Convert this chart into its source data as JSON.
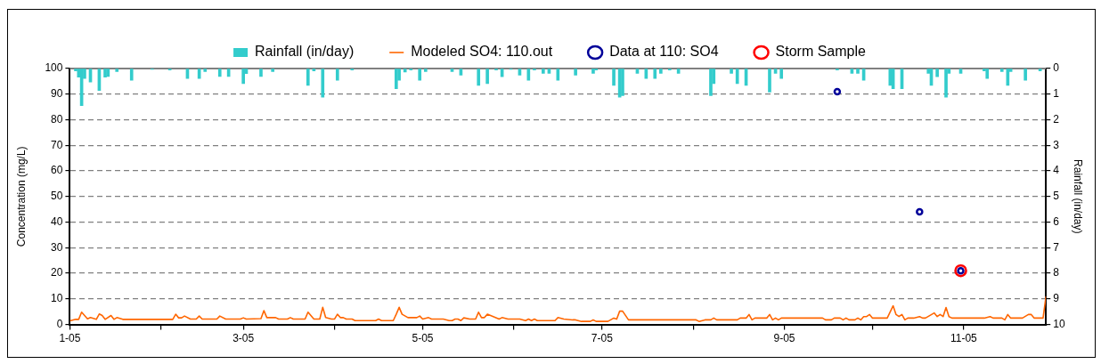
{
  "chart_data": {
    "type": "line",
    "ylabel": "Concentration (mg/L)",
    "y2label": "Rainfall (in/day)",
    "xlim": [
      "2005-01-01",
      "2005-11-29"
    ],
    "xticks": [
      {
        "value": "2005-01-01",
        "label": "1-05"
      },
      {
        "value": "2005-02-01",
        "label": null
      },
      {
        "value": "2005-03-01",
        "label": "3-05"
      },
      {
        "value": "2005-04-01",
        "label": null
      },
      {
        "value": "2005-05-01",
        "label": "5-05"
      },
      {
        "value": "2005-06-01",
        "label": null
      },
      {
        "value": "2005-07-01",
        "label": "7-05"
      },
      {
        "value": "2005-08-01",
        "label": null
      },
      {
        "value": "2005-09-01",
        "label": "9-05"
      },
      {
        "value": "2005-10-01",
        "label": null
      },
      {
        "value": "2005-11-01",
        "label": "11-05"
      }
    ],
    "ylim": [
      0,
      100
    ],
    "yticks": [
      0,
      10,
      20,
      30,
      40,
      50,
      60,
      70,
      80,
      90,
      100
    ],
    "y2lim": [
      10,
      0
    ],
    "y2ticks": [
      0,
      1,
      2,
      3,
      4,
      5,
      6,
      7,
      8,
      9,
      10
    ],
    "grid": "y",
    "legend": "top",
    "marker": "circle",
    "series": [
      {
        "name": "Rainfall (in/day)",
        "type": "bar",
        "axis": "y2",
        "color": "#33cccc",
        "x": [
          "2005-01-03",
          "2005-01-04",
          "2005-01-05",
          "2005-01-06",
          "2005-01-08",
          "2005-01-11",
          "2005-01-13",
          "2005-01-14",
          "2005-01-17",
          "2005-01-22",
          "2005-01-29",
          "2005-02-04",
          "2005-02-10",
          "2005-02-14",
          "2005-02-16",
          "2005-02-21",
          "2005-02-24",
          "2005-03-01",
          "2005-03-02",
          "2005-03-07",
          "2005-03-11",
          "2005-03-23",
          "2005-03-25",
          "2005-03-28",
          "2005-04-02",
          "2005-04-07",
          "2005-04-22",
          "2005-04-23",
          "2005-04-25",
          "2005-04-27",
          "2005-04-30",
          "2005-05-02",
          "2005-05-11",
          "2005-05-14",
          "2005-05-20",
          "2005-05-23",
          "2005-05-26",
          "2005-05-28",
          "2005-05-31",
          "2005-06-03",
          "2005-06-06",
          "2005-06-08",
          "2005-06-11",
          "2005-06-13",
          "2005-06-16",
          "2005-06-22",
          "2005-06-28",
          "2005-06-29",
          "2005-07-05",
          "2005-07-07",
          "2005-07-08",
          "2005-07-13",
          "2005-07-16",
          "2005-07-19",
          "2005-07-21",
          "2005-07-24",
          "2005-07-27",
          "2005-08-07",
          "2005-08-08",
          "2005-08-14",
          "2005-08-16",
          "2005-08-19",
          "2005-08-27",
          "2005-08-29",
          "2005-08-31",
          "2005-09-19",
          "2005-09-24",
          "2005-09-26",
          "2005-09-28",
          "2005-10-07",
          "2005-10-08",
          "2005-10-11",
          "2005-10-20",
          "2005-10-21",
          "2005-10-23",
          "2005-10-26",
          "2005-10-27",
          "2005-10-31",
          "2005-11-08",
          "2005-11-09",
          "2005-11-14",
          "2005-11-16",
          "2005-11-17",
          "2005-11-22",
          "2005-11-27"
        ],
        "values": [
          0.09,
          0.34,
          1.45,
          0.39,
          0.53,
          0.86,
          0.34,
          0.31,
          0.12,
          0.46,
          0.03,
          0.06,
          0.39,
          0.39,
          0.12,
          0.31,
          0.31,
          0.59,
          0.2,
          0.31,
          0.12,
          0.66,
          0.09,
          1.12,
          0.46,
          0.06,
          0.79,
          0.46,
          0.14,
          0.06,
          0.46,
          0.12,
          0.12,
          0.26,
          0.66,
          0.59,
          0.06,
          0.32,
          0.03,
          0.26,
          0.46,
          0.06,
          0.19,
          0.19,
          0.46,
          0.26,
          0.19,
          0.06,
          0.66,
          1.12,
          1.06,
          0.19,
          0.39,
          0.39,
          0.19,
          0.06,
          0.19,
          1.06,
          0.59,
          0.19,
          0.59,
          0.66,
          0.92,
          0.19,
          0.39,
          0.06,
          0.19,
          0.19,
          0.46,
          0.66,
          0.79,
          0.79,
          0.19,
          0.66,
          0.32,
          1.12,
          0.19,
          0.19,
          0.09,
          0.39,
          0.12,
          0.66,
          0.12,
          0.46,
          0.09
        ]
      },
      {
        "name": "Modeled SO4: 110.out",
        "marker": "none",
        "color": "#ff6600",
        "x": [
          "2005-01-01",
          "2005-01-03",
          "2005-01-04",
          "2005-01-05",
          "2005-01-07",
          "2005-01-08",
          "2005-01-10",
          "2005-01-11",
          "2005-01-12",
          "2005-01-13",
          "2005-01-15",
          "2005-01-16",
          "2005-01-17",
          "2005-01-19",
          "2005-02-05",
          "2005-02-06",
          "2005-02-07",
          "2005-02-08",
          "2005-02-09",
          "2005-02-11",
          "2005-02-13",
          "2005-02-14",
          "2005-02-15",
          "2005-02-20",
          "2005-02-21",
          "2005-02-23",
          "2005-02-28",
          "2005-03-01",
          "2005-03-02",
          "2005-03-07",
          "2005-03-08",
          "2005-03-09",
          "2005-03-12",
          "2005-03-13",
          "2005-03-16",
          "2005-03-17",
          "2005-03-18",
          "2005-03-22",
          "2005-03-23",
          "2005-03-25",
          "2005-03-27",
          "2005-03-28",
          "2005-03-29",
          "2005-03-31",
          "2005-04-01",
          "2005-04-02",
          "2005-04-03",
          "2005-04-04",
          "2005-04-05",
          "2005-04-07",
          "2005-04-08",
          "2005-04-15",
          "2005-04-16",
          "2005-04-17",
          "2005-04-21",
          "2005-04-22",
          "2005-04-23",
          "2005-04-24",
          "2005-04-26",
          "2005-04-29",
          "2005-04-30",
          "2005-05-01",
          "2005-05-03",
          "2005-05-04",
          "2005-05-08",
          "2005-05-10",
          "2005-05-11",
          "2005-05-12",
          "2005-05-13",
          "2005-05-14",
          "2005-05-15",
          "2005-05-17",
          "2005-05-19",
          "2005-05-20",
          "2005-05-21",
          "2005-05-22",
          "2005-05-23",
          "2005-05-25",
          "2005-05-27",
          "2005-05-28",
          "2005-05-30",
          "2005-06-03",
          "2005-06-05",
          "2005-06-06",
          "2005-06-07",
          "2005-06-08",
          "2005-06-09",
          "2005-06-15",
          "2005-06-16",
          "2005-06-18",
          "2005-06-21",
          "2005-06-22",
          "2005-06-24",
          "2005-06-27",
          "2005-06-28",
          "2005-06-29",
          "2005-07-03",
          "2005-07-05",
          "2005-07-06",
          "2005-07-07",
          "2005-07-08",
          "2005-07-10",
          "2005-08-02",
          "2005-08-03",
          "2005-08-05",
          "2005-08-07",
          "2005-08-08",
          "2005-08-09",
          "2005-08-16",
          "2005-08-17",
          "2005-08-19",
          "2005-08-20",
          "2005-08-21",
          "2005-08-22",
          "2005-08-26",
          "2005-08-27",
          "2005-08-28",
          "2005-08-29",
          "2005-08-30",
          "2005-08-31",
          "2005-09-14",
          "2005-09-15",
          "2005-09-17",
          "2005-09-18",
          "2005-09-20",
          "2005-09-21",
          "2005-09-22",
          "2005-09-23",
          "2005-09-25",
          "2005-09-26",
          "2005-09-27",
          "2005-09-28",
          "2005-09-29",
          "2005-09-30",
          "2005-10-01",
          "2005-10-06",
          "2005-10-08",
          "2005-10-09",
          "2005-10-10",
          "2005-10-11",
          "2005-10-12",
          "2005-10-13",
          "2005-10-15",
          "2005-10-17",
          "2005-10-18",
          "2005-10-19",
          "2005-10-22",
          "2005-10-23",
          "2005-10-24",
          "2005-10-25",
          "2005-10-26",
          "2005-10-27",
          "2005-10-28",
          "2005-11-08",
          "2005-11-10",
          "2005-11-11",
          "2005-11-14",
          "2005-11-15",
          "2005-11-16",
          "2005-11-17",
          "2005-11-21",
          "2005-11-23",
          "2005-11-24",
          "2005-11-25",
          "2005-11-28",
          "2005-11-29"
        ],
        "values": [
          1.4,
          2.0,
          2.0,
          4.8,
          2.2,
          2.7,
          2.0,
          4.1,
          3.5,
          2.0,
          3.5,
          2.0,
          2.7,
          2.0,
          2.0,
          4.0,
          2.6,
          2.6,
          3.3,
          2.1,
          2.1,
          3.3,
          2.1,
          2.1,
          3.3,
          2.1,
          2.1,
          2.6,
          2.1,
          2.3,
          5.4,
          2.7,
          2.7,
          2.1,
          2.1,
          2.7,
          2.1,
          2.1,
          4.8,
          2.1,
          2.1,
          6.7,
          2.7,
          2.1,
          2.1,
          4.0,
          2.7,
          2.7,
          2.1,
          2.1,
          1.5,
          1.5,
          2.1,
          1.5,
          1.5,
          4.0,
          6.7,
          4.0,
          2.7,
          2.7,
          3.3,
          2.1,
          2.7,
          2.1,
          2.1,
          1.5,
          1.5,
          2.1,
          2.1,
          1.5,
          2.6,
          2.1,
          2.1,
          4.8,
          2.7,
          2.7,
          4.0,
          3.1,
          2.1,
          2.7,
          2.1,
          2.1,
          1.5,
          2.1,
          1.5,
          2.1,
          1.5,
          1.5,
          2.7,
          2.1,
          1.8,
          1.8,
          1.2,
          1.2,
          1.8,
          1.2,
          1.2,
          2.5,
          2.1,
          5.2,
          5.2,
          1.8,
          1.8,
          1.2,
          1.8,
          1.8,
          2.5,
          1.8,
          1.8,
          2.5,
          2.5,
          3.9,
          1.8,
          2.5,
          2.5,
          3.9,
          1.8,
          2.5,
          1.8,
          2.5,
          2.5,
          1.8,
          1.8,
          2.5,
          2.5,
          1.8,
          2.5,
          1.8,
          1.8,
          2.5,
          1.8,
          3.1,
          3.1,
          3.9,
          2.5,
          2.5,
          7.3,
          3.9,
          3.1,
          3.9,
          1.8,
          2.5,
          2.5,
          3.1,
          2.5,
          2.5,
          4.5,
          3.1,
          3.9,
          3.1,
          6.6,
          3.1,
          2.5,
          2.5,
          3.1,
          2.5,
          2.5,
          1.8,
          3.9,
          2.5,
          2.5,
          3.9,
          3.9,
          2.5,
          2.5,
          11
        ]
      },
      {
        "name": "Data at 110: SO4",
        "type": "scatter",
        "color": "#000099",
        "x": [
          "2005-09-19",
          "2005-10-17",
          "2005-10-31"
        ],
        "values": [
          91,
          44,
          21
        ]
      },
      {
        "name": "Storm Sample",
        "type": "scatter",
        "color": "#ff0000",
        "x": [
          "2005-10-31"
        ],
        "values": [
          21
        ]
      }
    ]
  }
}
